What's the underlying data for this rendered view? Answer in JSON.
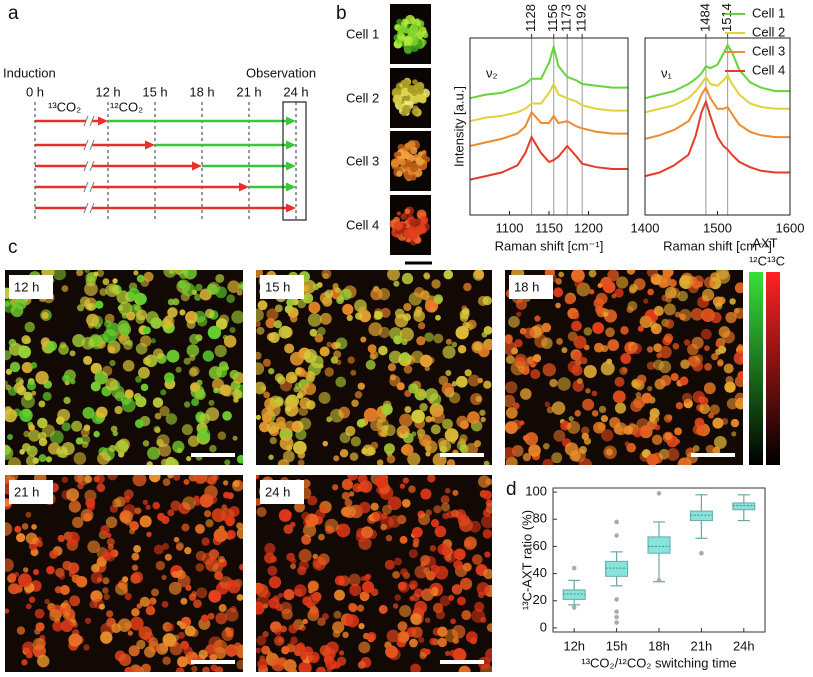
{
  "panel_labels": [
    "a",
    "b",
    "c",
    "d"
  ],
  "timeline": {
    "start_label": "Induction",
    "end_label": "Observation",
    "xlim": [
      0,
      24
    ],
    "xticks": [
      {
        "value": 0,
        "label": "0 h"
      },
      {
        "value": 12,
        "label": "12 h"
      },
      {
        "value": 15,
        "label": "15 h"
      },
      {
        "value": 18,
        "label": "18 h"
      },
      {
        "value": 21,
        "label": "21 h"
      },
      {
        "value": 24,
        "label": "24 h"
      }
    ],
    "gas_before": "¹³CO₂",
    "gas_after": "¹²CO₂",
    "gas_before_color": "#e8302a",
    "gas_after_color": "#3cc43c",
    "switch_times": [
      12,
      15,
      18,
      21,
      24
    ]
  },
  "cells": {
    "labels": [
      "Cell 1",
      "Cell 2",
      "Cell 3",
      "Cell 4"
    ]
  },
  "micrographs": {
    "labels": [
      "12 h",
      "15 h",
      "18 h",
      "21 h",
      "24 h"
    ],
    "colorbar_title": "AXT",
    "colorbar_low": "¹²C",
    "colorbar_high": "¹³C"
  },
  "chart_data": [
    {
      "type": "line",
      "x": [
        1050,
        1070,
        1090,
        1110,
        1120,
        1128,
        1140,
        1150,
        1156,
        1162,
        1173,
        1185,
        1192,
        1210,
        1230,
        1250
      ],
      "series": [
        {
          "color": "#66d43a",
          "values": [
            6.6,
            6.8,
            6.9,
            7.2,
            7.4,
            7.7,
            7.7,
            8.6,
            9.5,
            8.4,
            7.8,
            7.6,
            7.4,
            7.3,
            7.2,
            7.2
          ]
        },
        {
          "color": "#e2d23a",
          "values": [
            5.3,
            5.5,
            5.6,
            5.8,
            6.0,
            6.3,
            6.3,
            6.9,
            7.4,
            6.8,
            6.6,
            6.4,
            6.2,
            6.0,
            5.9,
            5.9
          ]
        },
        {
          "color": "#ee8a30",
          "values": [
            3.9,
            4.1,
            4.3,
            4.6,
            5.0,
            5.8,
            5.2,
            5.2,
            5.6,
            5.2,
            5.3,
            5.0,
            4.9,
            4.7,
            4.6,
            4.6
          ]
        },
        {
          "color": "#e63b2a",
          "values": [
            2.0,
            2.2,
            2.4,
            2.8,
            3.5,
            4.4,
            3.5,
            3.0,
            3.1,
            3.3,
            3.9,
            3.3,
            2.9,
            2.7,
            2.6,
            2.6
          ]
        }
      ],
      "xlim": [
        1050,
        1250
      ],
      "xticks": [
        1100,
        1150,
        1200
      ],
      "ylim": [
        0,
        10
      ],
      "xlabel": "Raman shift [cm⁻¹]",
      "ylabel": "Intensity [a.u.]",
      "band_label": "ν₂",
      "peaks": [
        1128,
        1156,
        1173,
        1192
      ]
    },
    {
      "type": "line",
      "x": [
        1400,
        1420,
        1440,
        1460,
        1470,
        1478,
        1484,
        1490,
        1500,
        1508,
        1514,
        1520,
        1530,
        1545,
        1560,
        1580,
        1600
      ],
      "series": [
        {
          "name": "Cell 1",
          "color": "#66d43a",
          "values": [
            6.6,
            6.8,
            7.0,
            7.4,
            7.7,
            8.0,
            8.4,
            8.3,
            8.5,
            9.1,
            9.6,
            9.2,
            8.2,
            7.5,
            7.2,
            7.0,
            7.0
          ]
        },
        {
          "name": "Cell 2",
          "color": "#e2d23a",
          "values": [
            5.8,
            6.0,
            6.2,
            6.6,
            7.0,
            7.4,
            7.8,
            7.4,
            7.3,
            7.6,
            7.9,
            7.4,
            6.8,
            6.3,
            6.1,
            6.0,
            6.0
          ]
        },
        {
          "name": "Cell 3",
          "color": "#ee8a30",
          "values": [
            4.3,
            4.5,
            4.8,
            5.3,
            6.0,
            6.8,
            7.2,
            6.6,
            6.0,
            6.0,
            6.1,
            5.7,
            5.1,
            4.7,
            4.5,
            4.4,
            4.4
          ]
        },
        {
          "name": "Cell 4",
          "color": "#e63b2a",
          "values": [
            2.2,
            2.4,
            2.8,
            3.4,
            4.5,
            5.8,
            6.4,
            5.6,
            4.4,
            3.9,
            3.7,
            3.4,
            3.0,
            2.7,
            2.5,
            2.4,
            2.4
          ]
        }
      ],
      "xlim": [
        1400,
        1600
      ],
      "xticks": [
        1400,
        1500,
        1600
      ],
      "ylim": [
        0,
        10
      ],
      "xlabel": "Raman shift [cm⁻¹]",
      "band_label": "ν₁",
      "peaks": [
        1484,
        1514
      ],
      "legend": true
    },
    {
      "type": "box",
      "categories": [
        "12h",
        "15h",
        "18h",
        "21h",
        "24h"
      ],
      "boxes": [
        {
          "min": 17,
          "q1": 21,
          "median": 25,
          "q3": 28,
          "max": 35,
          "outliers": [
            44,
            15
          ]
        },
        {
          "min": 31,
          "q1": 38,
          "median": 44,
          "q3": 49,
          "max": 56,
          "outliers": [
            78,
            68,
            21,
            12,
            8,
            4
          ]
        },
        {
          "min": 34,
          "q1": 55,
          "median": 60,
          "q3": 67,
          "max": 78,
          "outliers": [
            99,
            35
          ]
        },
        {
          "min": 66,
          "q1": 79,
          "median": 83,
          "q3": 86,
          "max": 98,
          "outliers": [
            55
          ]
        },
        {
          "min": 79,
          "q1": 87,
          "median": 90,
          "q3": 92,
          "max": 98,
          "outliers": []
        }
      ],
      "color": "#86e4dc",
      "ylim": [
        -3,
        103
      ],
      "yticks": [
        0,
        20,
        40,
        60,
        80,
        100
      ],
      "ylabel": "¹³C-AXT ratio (%)",
      "xlabel": "¹³CO₂/¹²CO₂ switching time"
    }
  ]
}
